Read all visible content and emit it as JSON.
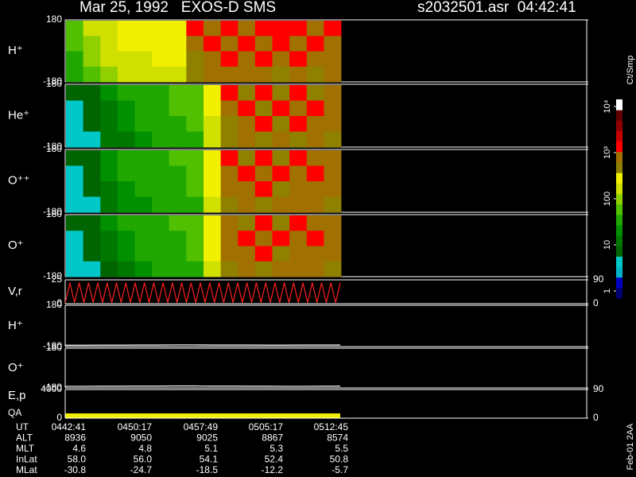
{
  "header": {
    "title": "Mar 25, 1992   EXOS-D SMS",
    "file_time": "s2032501.asr  04:42:41"
  },
  "colorbar": {
    "label": "Ct/Smp",
    "scale": "log",
    "clim": [
      0.7,
      14300
    ],
    "colors": [
      "#000070",
      "#0000c0",
      "#00b4c8",
      "#00c8c8",
      "#006400",
      "#007800",
      "#009000",
      "#20a800",
      "#50c000",
      "#90d000",
      "#d0e000",
      "#f0f000",
      "#908000",
      "#a07000",
      "#ff0000",
      "#c80000",
      "#900000",
      "#600000",
      "#ffffff"
    ],
    "ticks": [
      1,
      10,
      100,
      {
        "value": 1000,
        "label": "10³"
      },
      {
        "value": 10000,
        "label": "10⁴"
      }
    ]
  },
  "footer": "Feb-01 2AA",
  "chart_data": [
    {
      "type": "heatmap",
      "label": "H⁺",
      "ylim": [
        -180,
        180
      ],
      "yticks": [
        180,
        -180
      ],
      "values": [
        [
          60,
          150,
          200,
          240,
          260,
          300,
          250,
          1500,
          900,
          1200,
          1000,
          1300,
          1100,
          1400,
          900,
          1200
        ],
        [
          50,
          120,
          180,
          220,
          250,
          280,
          230,
          800,
          1500,
          1000,
          1400,
          900,
          1200,
          800,
          1300,
          1000
        ],
        [
          40,
          90,
          150,
          180,
          200,
          220,
          220,
          600,
          900,
          1300,
          800,
          1100,
          1000,
          1200,
          700,
          900
        ],
        [
          30,
          70,
          120,
          150,
          180,
          200,
          200,
          400,
          700,
          900,
          700,
          800,
          600,
          900,
          500,
          700
        ]
      ]
    },
    {
      "type": "heatmap",
      "label": "He⁺",
      "ylim": [
        -180,
        180
      ],
      "yticks": [
        180,
        -180
      ],
      "values": [
        [
          6,
          8,
          20,
          30,
          40,
          40,
          50,
          60,
          300,
          1200,
          400,
          1500,
          500,
          1300,
          600,
          1000
        ],
        [
          5,
          7,
          15,
          25,
          35,
          45,
          50,
          55,
          250,
          800,
          1100,
          600,
          1400,
          700,
          1200,
          900
        ],
        [
          4,
          6,
          12,
          20,
          30,
          40,
          45,
          50,
          200,
          600,
          900,
          1300,
          500,
          1100,
          800,
          700
        ],
        [
          4,
          5,
          10,
          15,
          25,
          30,
          40,
          45,
          150,
          400,
          700,
          500,
          900,
          600,
          700,
          500
        ]
      ]
    },
    {
      "type": "heatmap",
      "label": "O⁺⁺",
      "ylim": [
        -180,
        180
      ],
      "yticks": [
        180,
        -180
      ],
      "values": [
        [
          7,
          9,
          25,
          35,
          40,
          45,
          50,
          60,
          350,
          1100,
          500,
          1400,
          600,
          1200,
          700,
          1000
        ],
        [
          5,
          8,
          18,
          28,
          35,
          40,
          45,
          55,
          300,
          900,
          1200,
          700,
          1300,
          800,
          1100,
          900
        ],
        [
          5,
          6,
          14,
          22,
          30,
          35,
          40,
          50,
          250,
          700,
          1000,
          1200,
          600,
          1000,
          900,
          800
        ],
        [
          4,
          5,
          10,
          18,
          25,
          30,
          35,
          45,
          200,
          500,
          800,
          600,
          900,
          700,
          800,
          600
        ]
      ]
    },
    {
      "type": "heatmap",
      "label": "O⁺",
      "ylim": [
        -180,
        180
      ],
      "yticks": [
        180,
        -180
      ],
      "values": [
        [
          6,
          9,
          22,
          30,
          38,
          42,
          48,
          58,
          320,
          1000,
          450,
          1300,
          550,
          1100,
          650,
          950
        ],
        [
          5,
          7,
          16,
          26,
          32,
          40,
          45,
          52,
          280,
          850,
          1100,
          650,
          1250,
          750,
          1050,
          850
        ],
        [
          4,
          6,
          12,
          20,
          28,
          35,
          40,
          48,
          230,
          650,
          950,
          1150,
          550,
          950,
          850,
          750
        ],
        [
          4,
          5,
          9,
          16,
          24,
          30,
          36,
          44,
          180,
          450,
          750,
          550,
          850,
          650,
          750,
          550
        ]
      ]
    },
    {
      "type": "line",
      "label": "V,r",
      "ylim": [
        0,
        25
      ],
      "yticks": [
        25,
        0
      ],
      "y2lim": [
        0,
        90
      ],
      "y2ticks": [
        90,
        0
      ],
      "series": [
        {
          "color": "#ff2020",
          "values": [
            1,
            22,
            1,
            22,
            1,
            22,
            1,
            22,
            1,
            22,
            1,
            22,
            1,
            22,
            1,
            22,
            1,
            22,
            1,
            22,
            1,
            22,
            1,
            22,
            1,
            22,
            1,
            22,
            1,
            22,
            1,
            22,
            1,
            22,
            1,
            22,
            1,
            22,
            1,
            22,
            1,
            22,
            1,
            22,
            1,
            22,
            1,
            22,
            1,
            22,
            1,
            22,
            1,
            22,
            1,
            22,
            1,
            22,
            1,
            22
          ]
        }
      ]
    },
    {
      "type": "line",
      "label": "H⁺",
      "ylim": [
        -180,
        180
      ],
      "yticks": [
        180,
        -180
      ],
      "series": [
        {
          "color": "#ffffff",
          "values": [
            -168,
            -168,
            -167,
            -167,
            -166,
            -166,
            -165,
            -165,
            -166,
            -166,
            -166,
            -167,
            -167,
            -166,
            -166,
            -166
          ]
        }
      ]
    },
    {
      "type": "line",
      "label": "O⁺",
      "ylim": [
        -180,
        180
      ],
      "yticks": [
        180,
        -180
      ],
      "series": [
        {
          "color": "#ffffff",
          "values": [
            -165,
            -165,
            -164,
            -164,
            -163,
            -163,
            -162,
            -162,
            -163,
            -163,
            -164,
            -164,
            -165,
            -165,
            -164,
            -164
          ]
        }
      ]
    },
    {
      "type": "line",
      "label": "E,p",
      "label2": "QA",
      "ylim": [
        0,
        4000
      ],
      "yticks": [
        4000,
        0
      ],
      "y2lim": [
        0,
        90
      ],
      "y2ticks": [
        90,
        0
      ],
      "series": []
    }
  ],
  "ephemeris": [
    {
      "label": "UT",
      "values": [
        "0442:41",
        "0450:17",
        "0457:49",
        "0505:17",
        "0512:45"
      ]
    },
    {
      "label": "ALT",
      "values": [
        "8936",
        "9050",
        "9025",
        "8867",
        "8574"
      ]
    },
    {
      "label": "MLT",
      "values": [
        "4.6",
        "4.8",
        "5.1",
        "5.3",
        "5.5"
      ]
    },
    {
      "label": "InLat",
      "values": [
        "58.0",
        "56.0",
        "54.1",
        "52.4",
        "50.8"
      ]
    },
    {
      "label": "MLat",
      "values": [
        "-30.8",
        "-24.7",
        "-18.5",
        "-12.2",
        "-5.7"
      ]
    }
  ]
}
